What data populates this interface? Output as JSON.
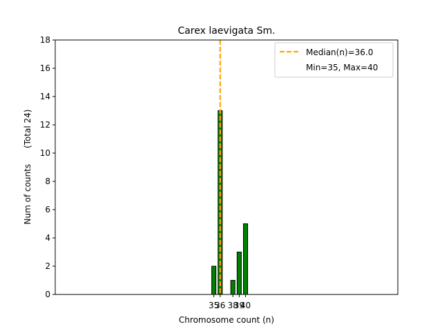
{
  "chart_data": {
    "type": "bar",
    "title": "Carex laevigata Sm.",
    "xlabel": "Chromosome count (n)",
    "ylabel": "Num of counts      (Total 24)",
    "x": [
      35,
      36,
      38,
      39,
      40
    ],
    "values": [
      2,
      13,
      1,
      3,
      5
    ],
    "xtick_labels": [
      "35",
      "36",
      "38",
      "39",
      "40"
    ],
    "xlim": [
      10,
      64
    ],
    "ylim": [
      0,
      18
    ],
    "yticks": [
      0,
      2,
      4,
      6,
      8,
      10,
      12,
      14,
      16,
      18
    ],
    "bar_color": "#008000",
    "bar_edge_color": "#000000",
    "median": {
      "value": 36.0,
      "label": "Median(n)=36.0",
      "color": "#FFA500"
    },
    "range_label": "Min=35, Max=40",
    "grid": false,
    "legend_position": "top-right"
  }
}
